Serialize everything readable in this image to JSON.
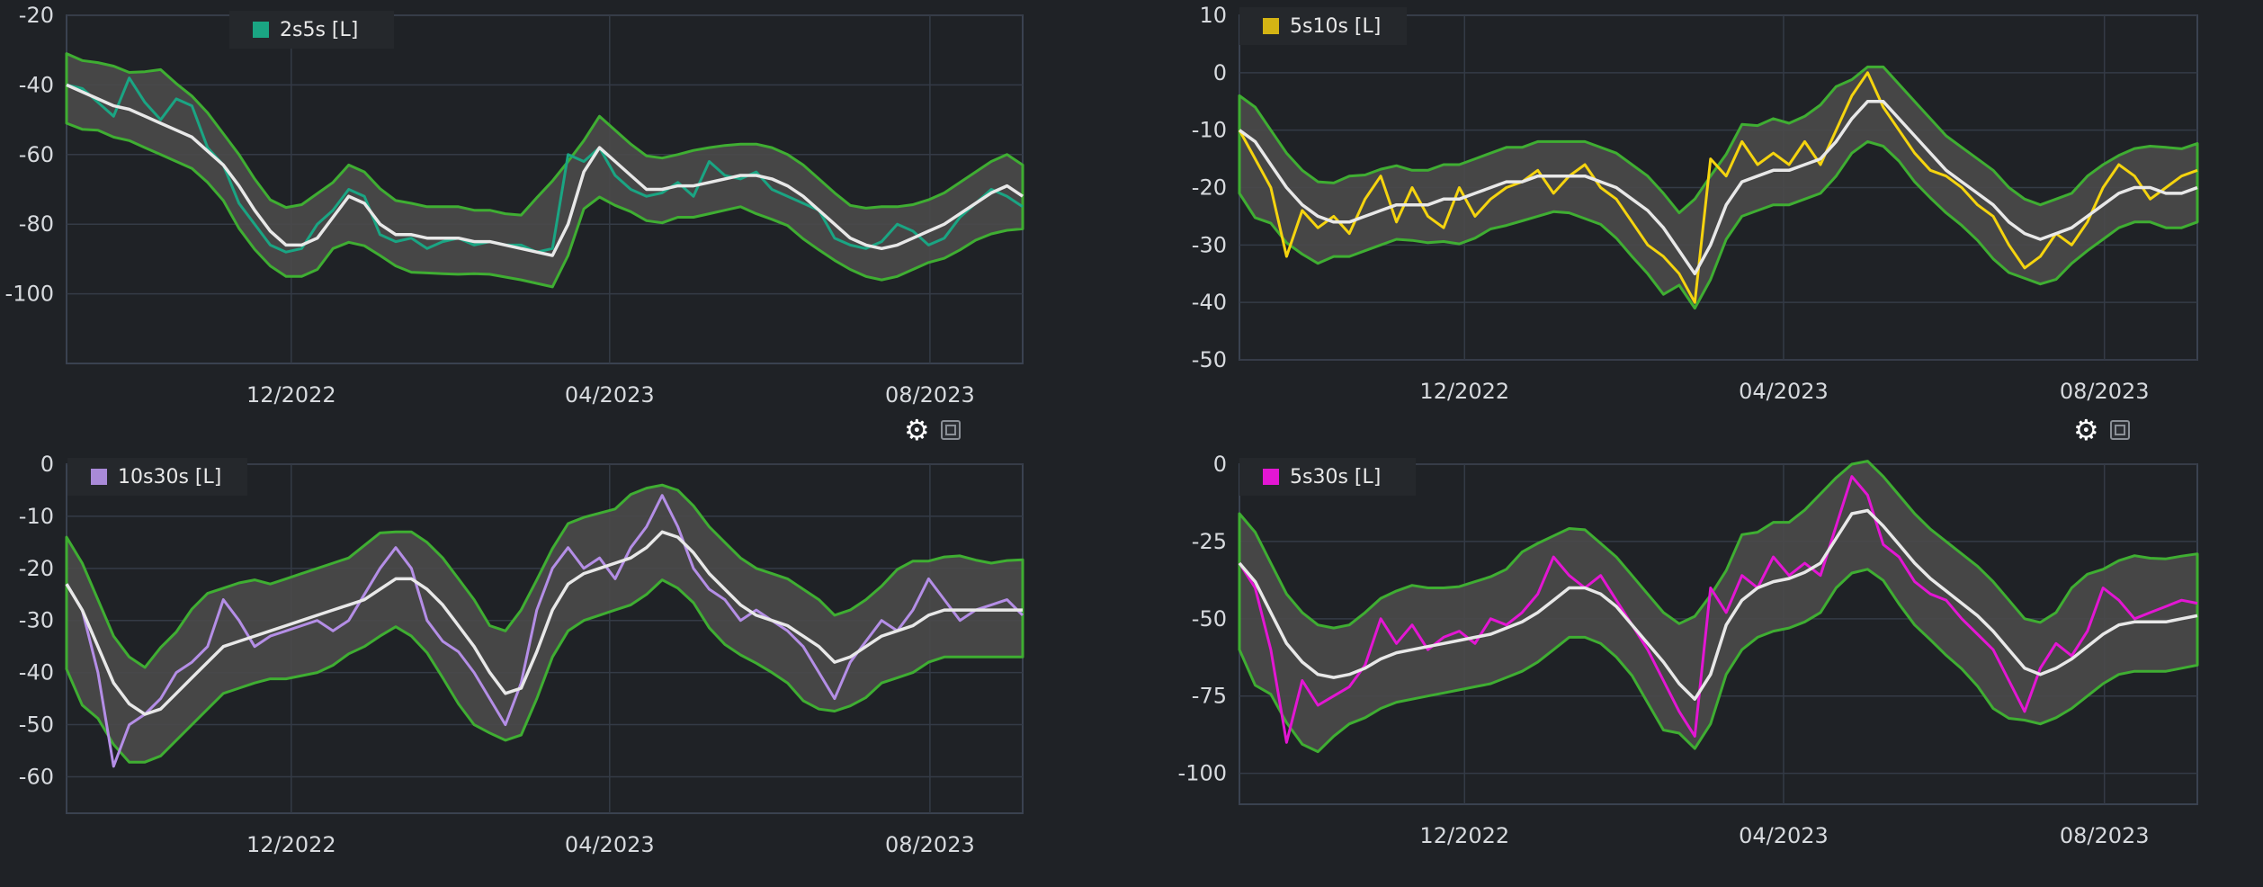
{
  "chart_data": [
    {
      "type": "line",
      "legend": "2s5s [L]",
      "color": "#1aa583",
      "x_ticks": [
        "12/2022",
        "04/2023",
        "08/2023"
      ],
      "y_ticks": [
        "-20",
        "-40",
        "-60",
        "-80",
        "-100"
      ],
      "ylim": [
        -120,
        -20
      ],
      "grid": true,
      "legend_position": "top-left",
      "series": [
        {
          "values": [
            -40,
            -41,
            -45,
            -49,
            -38,
            -45,
            -50,
            -44,
            -46,
            -58,
            -63,
            -74,
            -80,
            -86,
            -88,
            -87,
            -80,
            -76,
            -70,
            -72,
            -83,
            -85,
            -84,
            -87,
            -85,
            -84,
            -86,
            -85,
            -86,
            -86,
            -88,
            -87,
            -60,
            -62,
            -58,
            -66,
            -70,
            -72,
            -71,
            -68,
            -72,
            -62,
            -66,
            -67,
            -65,
            -70,
            -72,
            -74,
            -76,
            -84,
            -86,
            -87,
            -85,
            -80,
            -82,
            -86,
            -84,
            -78,
            -74,
            -70,
            -72,
            -75
          ]
        },
        {
          "values": [
            -40,
            -42,
            -44,
            -46,
            -47,
            -49,
            -51,
            -53,
            -55,
            -59,
            -63,
            -69,
            -76,
            -82,
            -86,
            -86,
            -84,
            -78,
            -72,
            -74,
            -80,
            -83,
            -83,
            -84,
            -84,
            -84,
            -85,
            -85,
            -86,
            -87,
            -88,
            -89,
            -80,
            -65,
            -58,
            -62,
            -66,
            -70,
            -70,
            -69,
            -69,
            -68,
            -67,
            -66,
            -66,
            -67,
            -69,
            -72,
            -76,
            -80,
            -84,
            -86,
            -87,
            -86,
            -84,
            -82,
            -80,
            -77,
            -74,
            -71,
            -69,
            -72
          ]
        }
      ]
    },
    {
      "type": "line",
      "legend": "5s10s [L]",
      "color": "#f5d40f",
      "x_ticks": [
        "12/2022",
        "04/2023",
        "08/2023"
      ],
      "y_ticks": [
        "10",
        "0",
        "-10",
        "-20",
        "-30",
        "-40",
        "-50"
      ],
      "ylim": [
        -50,
        10
      ],
      "grid": true,
      "legend_position": "top-left",
      "series": [
        {
          "values": [
            -10,
            -15,
            -20,
            -32,
            -24,
            -27,
            -25,
            -28,
            -22,
            -18,
            -26,
            -20,
            -25,
            -27,
            -20,
            -25,
            -22,
            -20,
            -19,
            -17,
            -21,
            -18,
            -16,
            -20,
            -22,
            -26,
            -30,
            -32,
            -35,
            -40,
            -15,
            -18,
            -12,
            -16,
            -14,
            -16,
            -12,
            -16,
            -10,
            -4,
            0,
            -6,
            -10,
            -14,
            -17,
            -18,
            -20,
            -23,
            -25,
            -30,
            -34,
            -32,
            -28,
            -30,
            -26,
            -20,
            -16,
            -18,
            -22,
            -20,
            -18,
            -17
          ]
        },
        {
          "values": [
            -10,
            -12,
            -16,
            -20,
            -23,
            -25,
            -26,
            -26,
            -25,
            -24,
            -23,
            -23,
            -23,
            -22,
            -22,
            -21,
            -20,
            -19,
            -19,
            -18,
            -18,
            -18,
            -18,
            -19,
            -20,
            -22,
            -24,
            -27,
            -31,
            -35,
            -30,
            -23,
            -19,
            -18,
            -17,
            -17,
            -16,
            -15,
            -12,
            -8,
            -5,
            -5,
            -8,
            -11,
            -14,
            -17,
            -19,
            -21,
            -23,
            -26,
            -28,
            -29,
            -28,
            -27,
            -25,
            -23,
            -21,
            -20,
            -20,
            -21,
            -21,
            -20
          ]
        }
      ]
    },
    {
      "type": "line",
      "legend": "10s30s [L]",
      "color": "#b48ee6",
      "x_ticks": [
        "12/2022",
        "04/2023",
        "08/2023"
      ],
      "y_ticks": [
        "0",
        "-10",
        "-20",
        "-30",
        "-40",
        "-50",
        "-60"
      ],
      "ylim": [
        -67,
        0
      ],
      "grid": true,
      "legend_position": "top-left",
      "series": [
        {
          "values": [
            -23,
            -28,
            -40,
            -58,
            -50,
            -48,
            -45,
            -40,
            -38,
            -35,
            -26,
            -30,
            -35,
            -33,
            -32,
            -31,
            -30,
            -32,
            -30,
            -25,
            -20,
            -16,
            -20,
            -30,
            -34,
            -36,
            -40,
            -45,
            -50,
            -42,
            -28,
            -20,
            -16,
            -20,
            -18,
            -22,
            -16,
            -12,
            -6,
            -12,
            -20,
            -24,
            -26,
            -30,
            -28,
            -30,
            -32,
            -35,
            -40,
            -45,
            -38,
            -34,
            -30,
            -32,
            -28,
            -22,
            -26,
            -30,
            -28,
            -27,
            -26,
            -29
          ]
        },
        {
          "values": [
            -23,
            -28,
            -35,
            -42,
            -46,
            -48,
            -47,
            -44,
            -41,
            -38,
            -35,
            -34,
            -33,
            -32,
            -31,
            -30,
            -29,
            -28,
            -27,
            -26,
            -24,
            -22,
            -22,
            -24,
            -27,
            -31,
            -35,
            -40,
            -44,
            -43,
            -36,
            -28,
            -23,
            -21,
            -20,
            -19,
            -18,
            -16,
            -13,
            -14,
            -17,
            -21,
            -24,
            -27,
            -29,
            -30,
            -31,
            -33,
            -35,
            -38,
            -37,
            -35,
            -33,
            -32,
            -31,
            -29,
            -28,
            -28,
            -28,
            -28,
            -28,
            -28
          ]
        }
      ]
    },
    {
      "type": "line",
      "legend": "5s30s [L]",
      "color": "#e316d3",
      "x_ticks": [
        "12/2022",
        "04/2023",
        "08/2023"
      ],
      "y_ticks": [
        "0",
        "-25",
        "-50",
        "-75",
        "-100"
      ],
      "ylim": [
        -110,
        0
      ],
      "grid": true,
      "legend_position": "top-left",
      "series": [
        {
          "values": [
            -32,
            -40,
            -60,
            -90,
            -70,
            -78,
            -75,
            -72,
            -65,
            -50,
            -58,
            -52,
            -60,
            -56,
            -54,
            -58,
            -50,
            -52,
            -48,
            -42,
            -30,
            -36,
            -40,
            -36,
            -44,
            -52,
            -60,
            -70,
            -80,
            -88,
            -40,
            -48,
            -36,
            -40,
            -30,
            -36,
            -32,
            -36,
            -20,
            -4,
            -10,
            -26,
            -30,
            -38,
            -42,
            -44,
            -50,
            -55,
            -60,
            -70,
            -80,
            -66,
            -58,
            -62,
            -54,
            -40,
            -44,
            -50,
            -48,
            -46,
            -44,
            -45
          ]
        },
        {
          "values": [
            -32,
            -38,
            -48,
            -58,
            -64,
            -68,
            -69,
            -68,
            -66,
            -63,
            -61,
            -60,
            -59,
            -58,
            -57,
            -56,
            -55,
            -53,
            -51,
            -48,
            -44,
            -40,
            -40,
            -42,
            -46,
            -52,
            -58,
            -64,
            -71,
            -76,
            -68,
            -52,
            -44,
            -40,
            -38,
            -37,
            -35,
            -32,
            -24,
            -16,
            -15,
            -20,
            -26,
            -32,
            -37,
            -41,
            -45,
            -49,
            -54,
            -60,
            -66,
            -68,
            -66,
            -63,
            -59,
            -55,
            -52,
            -51,
            -51,
            -51,
            -50,
            -49
          ]
        }
      ]
    }
  ]
}
